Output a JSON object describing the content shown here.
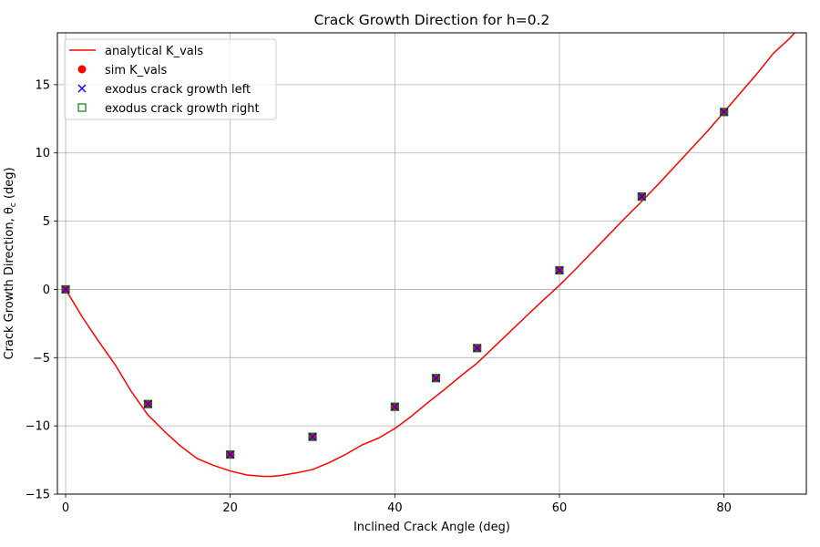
{
  "chart_data": {
    "type": "line",
    "title": "Crack Growth Direction for h=0.2",
    "xlabel": "Inclined Crack Angle (deg)",
    "ylabel": "Crack Growth Direction, θ",
    "ylabel_sub": "c",
    "ylabel_suffix": " (deg)",
    "xlim": [
      -1,
      90
    ],
    "ylim": [
      -15,
      18.8
    ],
    "xticks": [
      0,
      20,
      40,
      60,
      80
    ],
    "xtick_labels": [
      "0",
      "20",
      "40",
      "60",
      "80"
    ],
    "yticks": [
      -15,
      -10,
      -5,
      0,
      5,
      10,
      15
    ],
    "ytick_labels": [
      "−15",
      "−10",
      "−5",
      "0",
      "5",
      "10",
      "15"
    ],
    "grid": true,
    "legend_position": "top-left",
    "colors": {
      "analytical": "#ff0000",
      "sim": "#ff0000",
      "left": "#0000ff",
      "right": "#008000",
      "grid": "#b0b0b0"
    },
    "series": [
      {
        "name": "analytical K_vals",
        "kind": "line",
        "x": [
          0,
          2,
          4,
          6,
          8,
          10,
          12,
          14,
          16,
          18,
          20,
          22,
          24,
          25,
          26,
          28,
          30,
          32,
          34,
          36,
          38,
          40,
          42,
          44,
          46,
          48,
          50,
          52,
          54,
          56,
          58,
          60,
          62,
          64,
          66,
          68,
          70,
          72,
          74,
          76,
          78,
          80,
          82,
          84,
          86,
          88,
          89
        ],
        "y": [
          0,
          -2.0,
          -3.8,
          -5.5,
          -7.5,
          -9.2,
          -10.4,
          -11.5,
          -12.4,
          -12.9,
          -13.3,
          -13.6,
          -13.7,
          -13.7,
          -13.65,
          -13.45,
          -13.2,
          -12.7,
          -12.1,
          -11.4,
          -10.9,
          -10.2,
          -9.3,
          -8.3,
          -7.35,
          -6.35,
          -5.4,
          -4.25,
          -3.1,
          -1.95,
          -0.8,
          0.3,
          1.5,
          2.75,
          4.0,
          5.25,
          6.45,
          7.7,
          9.0,
          10.3,
          11.6,
          13.0,
          14.4,
          15.8,
          17.3,
          18.4,
          19.1
        ]
      },
      {
        "name": "sim K_vals",
        "kind": "points",
        "x": [
          0,
          10,
          20,
          30,
          40,
          45,
          50,
          60,
          70,
          80
        ],
        "y": [
          0,
          -8.4,
          -12.1,
          -10.8,
          -8.6,
          -6.5,
          -4.3,
          1.4,
          6.8,
          13.0
        ]
      },
      {
        "name": "exodus crack growth left",
        "kind": "points",
        "x": [
          0,
          10,
          20,
          30,
          40,
          45,
          50,
          60,
          70,
          80
        ],
        "y": [
          0,
          -8.4,
          -12.1,
          -10.8,
          -8.6,
          -6.5,
          -4.3,
          1.4,
          6.8,
          13.0
        ]
      },
      {
        "name": "exodus crack growth right",
        "kind": "points",
        "x": [
          0,
          10,
          20,
          30,
          40,
          45,
          50,
          60,
          70,
          80
        ],
        "y": [
          0,
          -8.4,
          -12.1,
          -10.8,
          -8.6,
          -6.5,
          -4.3,
          1.4,
          6.8,
          13.0
        ]
      }
    ]
  }
}
